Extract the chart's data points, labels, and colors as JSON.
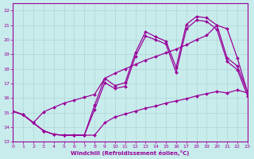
{
  "xlabel": "Windchill (Refroidissement éolien,°C)",
  "xlim": [
    0,
    23
  ],
  "ylim": [
    13,
    22.5
  ],
  "xticks": [
    0,
    1,
    2,
    3,
    4,
    5,
    6,
    7,
    8,
    9,
    10,
    11,
    12,
    13,
    14,
    15,
    16,
    17,
    18,
    19,
    20,
    21,
    22,
    23
  ],
  "yticks": [
    13,
    14,
    15,
    16,
    17,
    18,
    19,
    20,
    21,
    22
  ],
  "bg_color": "#c8ecec",
  "line_color": "#990099",
  "grid_color": "#b0d4d4",
  "curve1_x": [
    0,
    1,
    2,
    3,
    4,
    5,
    6,
    7,
    8,
    9,
    10,
    11,
    12,
    13,
    14,
    15,
    16,
    17,
    18,
    19,
    20,
    21,
    22,
    23
  ],
  "curve1_y": [
    15.1,
    14.85,
    14.3,
    13.75,
    13.5,
    13.45,
    13.45,
    13.45,
    15.5,
    17.35,
    16.85,
    17.05,
    19.1,
    20.55,
    20.2,
    19.9,
    18.1,
    21.05,
    21.6,
    21.5,
    21.0,
    18.75,
    18.2,
    16.4
  ],
  "curve2_x": [
    0,
    1,
    2,
    3,
    4,
    5,
    6,
    7,
    8,
    9,
    10,
    11,
    12,
    13,
    14,
    15,
    16,
    17,
    18,
    19,
    20,
    21,
    22,
    23
  ],
  "curve2_y": [
    15.1,
    14.85,
    14.3,
    13.75,
    13.5,
    13.45,
    13.45,
    13.45,
    15.2,
    17.05,
    16.65,
    16.8,
    18.85,
    20.25,
    20.0,
    19.7,
    17.75,
    20.75,
    21.35,
    21.25,
    20.7,
    18.5,
    17.95,
    16.15
  ],
  "curve3_x": [
    0,
    1,
    2,
    3,
    4,
    5,
    6,
    7,
    8,
    9,
    10,
    11,
    12,
    13,
    14,
    15,
    16,
    17,
    18,
    19,
    20,
    21,
    22,
    23
  ],
  "curve3_y": [
    15.1,
    14.85,
    14.3,
    15.05,
    15.35,
    15.65,
    15.85,
    16.05,
    16.25,
    17.35,
    17.7,
    18.0,
    18.3,
    18.6,
    18.85,
    19.1,
    19.35,
    19.65,
    20.0,
    20.3,
    21.0,
    20.75,
    18.75,
    16.4
  ],
  "curve4_x": [
    0,
    1,
    2,
    3,
    4,
    5,
    6,
    7,
    8,
    9,
    10,
    11,
    12,
    13,
    14,
    15,
    16,
    17,
    18,
    19,
    20,
    21,
    22,
    23
  ],
  "curve4_y": [
    15.1,
    14.85,
    14.3,
    13.75,
    13.5,
    13.45,
    13.45,
    13.45,
    13.45,
    14.3,
    14.7,
    14.9,
    15.1,
    15.3,
    15.45,
    15.65,
    15.8,
    15.95,
    16.15,
    16.3,
    16.45,
    16.35,
    16.55,
    16.35
  ]
}
